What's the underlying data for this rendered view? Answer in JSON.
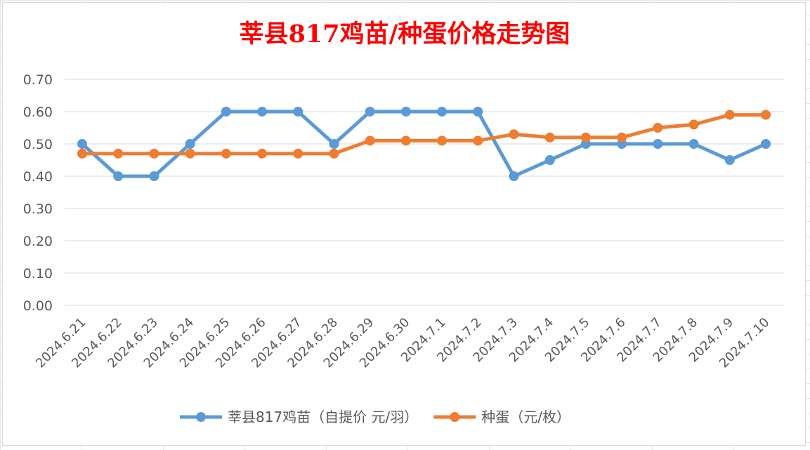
{
  "chart_data": {
    "type": "line",
    "title": "莘县817鸡苗/种蛋价格走势图",
    "xlabel": "",
    "ylabel": "",
    "ylim": [
      0,
      0.7
    ],
    "y_ticks": [
      "0.00",
      "0.10",
      "0.20",
      "0.30",
      "0.40",
      "0.50",
      "0.60",
      "0.70"
    ],
    "grid": true,
    "legend_position": "bottom",
    "x": [
      "2024.6.21",
      "2024.6.22",
      "2024.6.23",
      "2024.6.24",
      "2024.6.25",
      "2024.6.26",
      "2024.6.27",
      "2024.6.28",
      "2024.6.29",
      "2024.6.30",
      "2024.7.1",
      "2024.7.2",
      "2024.7.3",
      "2024.7.4",
      "2024.7.5",
      "2024.7.6",
      "2024.7.7",
      "2024.7.8",
      "2024.7.9",
      "2024.7.10"
    ],
    "series": [
      {
        "name": "莘县817鸡苗（自提价 元/羽）",
        "color": "#5b9bd5",
        "values": [
          0.5,
          0.4,
          0.4,
          0.5,
          0.6,
          0.6,
          0.6,
          0.5,
          0.6,
          0.6,
          0.6,
          0.6,
          0.4,
          0.45,
          0.5,
          0.5,
          0.5,
          0.5,
          0.45,
          0.5
        ]
      },
      {
        "name": "种蛋（元/枚）",
        "color": "#ed7d31",
        "values": [
          0.47,
          0.47,
          0.47,
          0.47,
          0.47,
          0.47,
          0.47,
          0.47,
          0.51,
          0.51,
          0.51,
          0.51,
          0.53,
          0.52,
          0.52,
          0.52,
          0.55,
          0.56,
          0.59,
          0.59
        ]
      }
    ]
  }
}
